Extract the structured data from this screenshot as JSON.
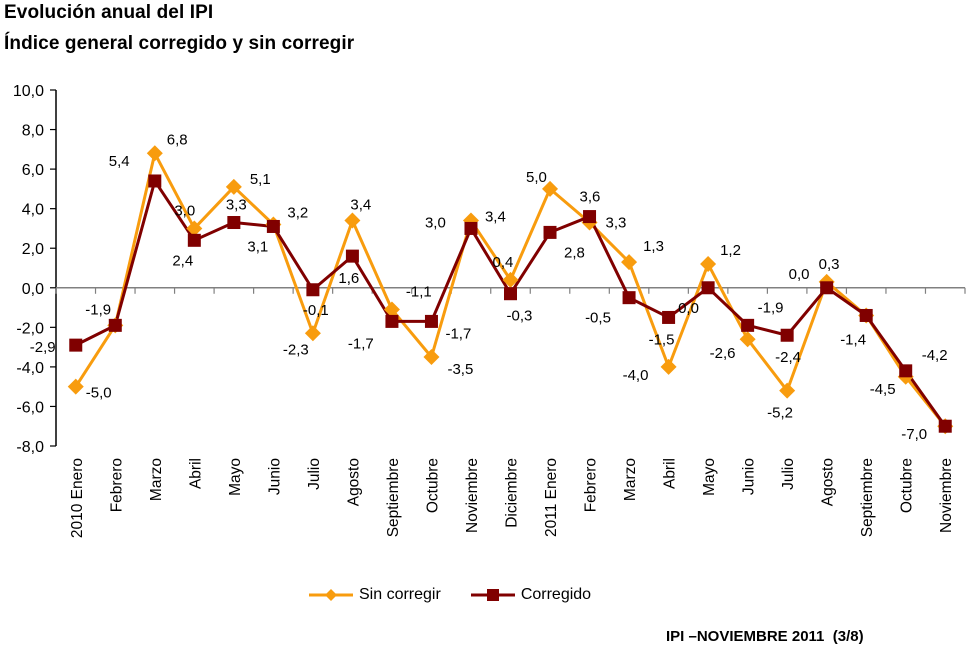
{
  "header": {
    "title": "Evolución anual del IPI",
    "subtitle": "Índice general corregido y sin corregir"
  },
  "footer": {
    "text": "IPI –NOVIEMBRE 2011  (3/8)"
  },
  "colors": {
    "sin_corregir": "#F89C0E",
    "corregido": "#800000",
    "axis": "#000000",
    "zero_line": "#808080"
  },
  "legend": {
    "items": [
      {
        "label": "Sin corregir",
        "marker": "diamond-icon"
      },
      {
        "label": "Corregido",
        "marker": "square-icon"
      }
    ]
  },
  "chart_data": {
    "type": "line",
    "title": "Evolución anual del IPI",
    "subtitle": "Índice general corregido y sin corregir",
    "xlabel": "",
    "ylabel": "",
    "ylim": [
      -8,
      10
    ],
    "ytick_step": 2,
    "ytick_labels": [
      "10,0",
      "8,0",
      "6,0",
      "4,0",
      "2,0",
      "0,0",
      "-2,0",
      "-4,0",
      "-6,0",
      "-8,0"
    ],
    "grid": false,
    "legend_position": "bottom",
    "categories": [
      "2010 Enero",
      "Febrero",
      "Marzo",
      "Abril",
      "Mayo",
      "Junio",
      "Julio",
      "Agosto",
      "Septiembre",
      "Octubre",
      "Noviembre",
      "Diciembre",
      "2011 Enero",
      "Febrero",
      "Marzo",
      "Abril",
      "Mayo",
      "Junio",
      "Julio",
      "Agosto",
      "Septiembre",
      "Octubre",
      "Noviembre"
    ],
    "series": [
      {
        "name": "Sin corregir",
        "marker": "diamond",
        "values": [
          -5.0,
          -1.9,
          6.8,
          3.0,
          5.1,
          3.2,
          -2.3,
          3.4,
          -1.1,
          -3.5,
          3.4,
          0.4,
          5.0,
          3.3,
          1.3,
          -4.0,
          1.2,
          -2.6,
          -5.2,
          0.3,
          -1.4,
          -4.5,
          -7.0
        ],
        "data_labels": [
          "-5,0",
          "",
          "6,8",
          "3,0",
          "5,1",
          "3,2",
          "-2,3",
          "3,4",
          "-1,1",
          "-3,5",
          "3,4",
          "0,4",
          "5,0",
          "3,3",
          "1,3",
          "-4,0",
          "1,2",
          "-2,6",
          "-5,2",
          "0,3",
          "",
          "-4,5",
          ""
        ]
      },
      {
        "name": "Corregido",
        "marker": "square",
        "values": [
          -2.9,
          -1.9,
          5.4,
          2.4,
          3.3,
          3.1,
          -0.1,
          1.6,
          -1.7,
          -1.7,
          3.0,
          -0.3,
          2.8,
          3.6,
          -0.5,
          -1.5,
          0.0,
          -1.9,
          -2.4,
          0.0,
          -1.4,
          -4.2,
          -7.0
        ],
        "data_labels": [
          "-2,9",
          "-1,9",
          "5,4",
          "2,4",
          "3,3",
          "3,1",
          "-0,1",
          "1,6",
          "-1,7",
          "-1,7",
          "3,0",
          "-0,3",
          "2,8",
          "3,6",
          "-0,5",
          "-1,5",
          "0,0",
          "-1,9",
          "-2,4",
          "0,0",
          "-1,4",
          "-4,2",
          "-7,0"
        ]
      }
    ]
  }
}
